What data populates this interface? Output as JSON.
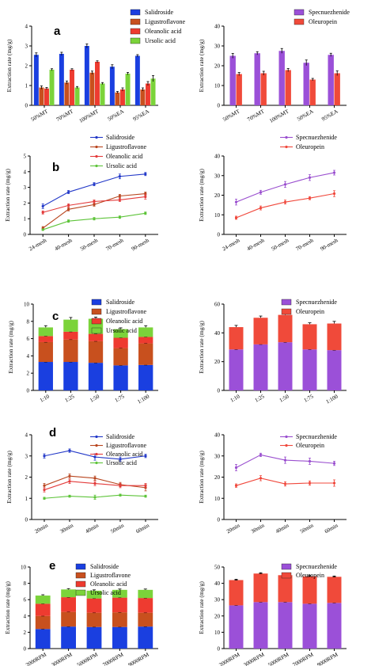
{
  "figure": {
    "panel_labels": [
      "a",
      "b",
      "c",
      "d",
      "e"
    ],
    "colors": {
      "salidroside": "#2238c8",
      "ligustroflavone": "#b8451e",
      "oleanolic": "#e33b3b",
      "ursolic": "#5ec43a",
      "specnuezhenide": "#9a4fcf",
      "oleuropein": "#f0483c",
      "bar_salidroside": "#1a3fe0",
      "bar_ligustroflavone": "#c8501e",
      "bar_oleanolic": "#ee3b30",
      "bar_ursolic": "#7bd33a",
      "bar_specnuezhenide": "#9b50d8",
      "bar_oleuropein": "#f04a3a"
    }
  },
  "chart_data": [
    {
      "id": "a-left",
      "type": "bar",
      "panel_label": "a",
      "ylabel": "Extraction rate (mg/g)",
      "ylim": [
        0,
        4
      ],
      "yticks": [
        0,
        1,
        2,
        3,
        4
      ],
      "categories": [
        "50%MT",
        "70%MT",
        "100%MT",
        "50%EA",
        "95%EA"
      ],
      "series": [
        {
          "name": "Salidroside",
          "color_key": "bar_salidroside",
          "values": [
            2.55,
            2.6,
            3.0,
            1.95,
            2.5
          ],
          "errors": [
            0.1,
            0.08,
            0.1,
            0.1,
            0.06
          ]
        },
        {
          "name": "Ligustroflavone",
          "color_key": "bar_ligustroflavone",
          "values": [
            0.9,
            1.15,
            1.65,
            0.65,
            0.8
          ],
          "errors": [
            0.08,
            0.08,
            0.08,
            0.05,
            0.08
          ]
        },
        {
          "name": "Oleanolic acid",
          "color_key": "bar_oleanolic",
          "values": [
            0.85,
            1.8,
            2.2,
            0.8,
            1.1
          ],
          "errors": [
            0.05,
            0.05,
            0.05,
            0.08,
            0.1
          ]
        },
        {
          "name": "Ursolic acid",
          "color_key": "bar_ursolic",
          "values": [
            1.8,
            0.9,
            1.1,
            1.6,
            1.35
          ],
          "errors": [
            0.05,
            0.05,
            0.05,
            0.06,
            0.15
          ]
        }
      ],
      "legend": "top-right"
    },
    {
      "id": "a-right",
      "type": "bar",
      "panel_label": "",
      "ylabel": "Extraction rate (mg/g)",
      "ylim": [
        0,
        40
      ],
      "yticks": [
        0,
        10,
        20,
        30,
        40
      ],
      "categories": [
        "50%MT",
        "70%MT",
        "100%MT",
        "50%EA",
        "95%EA"
      ],
      "series": [
        {
          "name": "Specnuezhenide",
          "color_key": "bar_specnuezhenide",
          "values": [
            25,
            26.3,
            27.5,
            21.5,
            25.5
          ],
          "errors": [
            1.2,
            0.8,
            1.2,
            1.4,
            0.8
          ]
        },
        {
          "name": "Oleuropein",
          "color_key": "bar_oleuropein",
          "values": [
            15.8,
            16.2,
            17.8,
            13,
            16.2
          ],
          "errors": [
            0.8,
            1.0,
            0.8,
            0.6,
            1.2
          ]
        }
      ],
      "legend": "top-right"
    },
    {
      "id": "b-left",
      "type": "line",
      "panel_label": "b",
      "ylabel": "Extraction rate (mg/g)",
      "ylim": [
        0,
        5
      ],
      "yticks": [
        0,
        1,
        2,
        3,
        4,
        5
      ],
      "categories": [
        "24-mesh",
        "40-mesh",
        "50-mesh",
        "70-mesh",
        "90-mesh"
      ],
      "series": [
        {
          "name": "Salidroside",
          "color_key": "salidroside",
          "values": [
            1.8,
            2.7,
            3.2,
            3.7,
            3.85
          ],
          "errors": [
            0.15,
            0.1,
            0.1,
            0.15,
            0.1
          ]
        },
        {
          "name": "Ligustroflavone",
          "color_key": "ligustroflavone",
          "values": [
            0.4,
            1.6,
            1.9,
            2.45,
            2.6
          ],
          "errors": [
            0.1,
            0.1,
            0.1,
            0.1,
            0.1
          ]
        },
        {
          "name": "Oleanolic acid",
          "color_key": "oleanolic",
          "values": [
            1.4,
            1.85,
            2.1,
            2.2,
            2.4
          ],
          "errors": [
            0.1,
            0.1,
            0.1,
            0.1,
            0.15
          ]
        },
        {
          "name": "Ursolic acid",
          "color_key": "ursolic",
          "values": [
            0.3,
            0.85,
            1.0,
            1.1,
            1.35
          ],
          "errors": [
            0.05,
            0.08,
            0.08,
            0.08,
            0.08
          ]
        }
      ],
      "legend": "top-left"
    },
    {
      "id": "b-right",
      "type": "line",
      "panel_label": "",
      "ylabel": "Extraction rate (mg/g)",
      "ylim": [
        0,
        40
      ],
      "yticks": [
        0,
        10,
        20,
        30,
        40
      ],
      "categories": [
        "24-mesh",
        "40-mesh",
        "50-mesh",
        "70-mesh",
        "90-mesh"
      ],
      "series": [
        {
          "name": "Specnuezhenide",
          "color_key": "specnuezhenide",
          "values": [
            16.5,
            21.5,
            25.5,
            29,
            31.5
          ],
          "errors": [
            1.5,
            1.0,
            1.5,
            1.5,
            1.2
          ]
        },
        {
          "name": "Oleuropein",
          "color_key": "oleuropein",
          "values": [
            8.5,
            13.5,
            16.5,
            18.5,
            20.8
          ],
          "errors": [
            0.8,
            1.0,
            1.0,
            0.8,
            1.5
          ]
        }
      ],
      "legend": "top-right"
    },
    {
      "id": "c-left",
      "type": "bar",
      "stacked": true,
      "panel_label": "c",
      "ylabel": "Extraction rate (mg/g)",
      "ylim": [
        0,
        10
      ],
      "yticks": [
        0,
        2,
        4,
        6,
        8,
        10
      ],
      "categories": [
        "1:10",
        "1:25",
        "1:50",
        "1:75",
        "1:100"
      ],
      "series": [
        {
          "name": "Salidroside",
          "color_key": "bar_salidroside",
          "values": [
            3.3,
            3.3,
            3.2,
            2.9,
            2.95
          ]
        },
        {
          "name": "Ligustroflavone",
          "color_key": "bar_ligustroflavone",
          "values": [
            2.3,
            2.6,
            2.5,
            2.0,
            2.5
          ]
        },
        {
          "name": "Oleanolic acid",
          "color_key": "bar_oleanolic",
          "values": [
            0.7,
            0.9,
            0.85,
            1.2,
            0.75
          ]
        },
        {
          "name": "Ursolic acid",
          "color_key": "bar_ursolic",
          "values": [
            1.0,
            1.4,
            1.75,
            1.0,
            1.1
          ]
        }
      ],
      "totals_error": [
        0.2,
        0.25,
        0.2,
        0.15,
        0.2
      ],
      "legend": "top-right"
    },
    {
      "id": "c-right",
      "type": "bar",
      "stacked": true,
      "panel_label": "",
      "ylabel": "Extraction rate (mg/g)",
      "ylim": [
        0,
        60
      ],
      "yticks": [
        0,
        20,
        40,
        60
      ],
      "categories": [
        "1:10",
        "1:25",
        "1:50",
        "1:75",
        "1:100"
      ],
      "series": [
        {
          "name": "Specnuezhenide",
          "color_key": "bar_specnuezhenide",
          "values": [
            28.5,
            32,
            33.5,
            28.5,
            28
          ]
        },
        {
          "name": "Oleuropein",
          "color_key": "bar_oleuropein",
          "values": [
            15.5,
            18.5,
            19,
            17.5,
            18.5
          ]
        }
      ],
      "totals_error": [
        1.2,
        1.2,
        1.0,
        1.0,
        1.5
      ],
      "legend": "top-right"
    },
    {
      "id": "d-left",
      "type": "line",
      "panel_label": "d",
      "ylabel": "Extraction rate (mg/g)",
      "ylim": [
        0,
        4
      ],
      "yticks": [
        0,
        1,
        2,
        3,
        4
      ],
      "categories": [
        "20min",
        "30min",
        "40min",
        "50min",
        "60min"
      ],
      "series": [
        {
          "name": "Salidroside",
          "color_key": "salidroside",
          "values": [
            3.0,
            3.25,
            2.95,
            2.85,
            3.0
          ],
          "errors": [
            0.1,
            0.08,
            0.15,
            0.1,
            0.08
          ]
        },
        {
          "name": "Ligustroflavone",
          "color_key": "ligustroflavone",
          "values": [
            1.6,
            2.05,
            1.95,
            1.65,
            1.5
          ],
          "errors": [
            0.1,
            0.1,
            0.1,
            0.1,
            0.15
          ]
        },
        {
          "name": "Oleanolic acid",
          "color_key": "oleanolic",
          "values": [
            1.4,
            1.8,
            1.7,
            1.6,
            1.6
          ],
          "errors": [
            0.1,
            0.1,
            0.1,
            0.1,
            0.1
          ]
        },
        {
          "name": "Ursolic acid",
          "color_key": "ursolic",
          "values": [
            1.0,
            1.1,
            1.05,
            1.15,
            1.1
          ],
          "errors": [
            0.05,
            0.05,
            0.1,
            0.05,
            0.05
          ]
        }
      ],
      "legend": "top-right"
    },
    {
      "id": "d-right",
      "type": "line",
      "panel_label": "",
      "ylabel": "Extraction rate (mg/g)",
      "ylim": [
        0,
        40
      ],
      "yticks": [
        0,
        10,
        20,
        30,
        40
      ],
      "categories": [
        "20min",
        "30min",
        "40min",
        "50min",
        "60min"
      ],
      "series": [
        {
          "name": "Specnuezhenide",
          "color_key": "specnuezhenide",
          "values": [
            24.5,
            30.5,
            28,
            27.5,
            26.5
          ],
          "errors": [
            1.5,
            0.8,
            1.5,
            1.5,
            1.0
          ]
        },
        {
          "name": "Oleuropein",
          "color_key": "oleuropein",
          "values": [
            16,
            19.5,
            16.8,
            17.2,
            17.2
          ],
          "errors": [
            0.8,
            1.2,
            1.0,
            1.0,
            1.5
          ]
        }
      ],
      "legend": "top-right"
    },
    {
      "id": "e-left",
      "type": "bar",
      "stacked": true,
      "panel_label": "e",
      "ylabel": "Extraction rate (mg/g)",
      "ylim": [
        0,
        10
      ],
      "yticks": [
        0,
        2,
        4,
        6,
        8,
        10
      ],
      "categories": [
        "2000RPM",
        "3000RPM",
        "5000RPM",
        "7000RPM",
        "9000RPM"
      ],
      "series": [
        {
          "name": "Salidroside",
          "color_key": "bar_salidroside",
          "values": [
            2.4,
            2.7,
            2.65,
            2.65,
            2.7
          ]
        },
        {
          "name": "Ligustroflavone",
          "color_key": "bar_ligustroflavone",
          "values": [
            1.6,
            1.8,
            1.75,
            1.8,
            1.7
          ]
        },
        {
          "name": "Oleanolic acid",
          "color_key": "bar_oleanolic",
          "values": [
            1.5,
            1.8,
            1.75,
            1.8,
            1.8
          ]
        },
        {
          "name": "Ursolic acid",
          "color_key": "bar_ursolic",
          "values": [
            1.0,
            0.95,
            0.95,
            0.95,
            1.0
          ]
        }
      ],
      "totals_error": [
        0.1,
        0.1,
        0.1,
        0.1,
        0.1
      ],
      "legend": "top-right"
    },
    {
      "id": "e-right",
      "type": "bar",
      "stacked": true,
      "panel_label": "",
      "ylabel": "Extraction rate (mg/g)",
      "ylim": [
        0,
        50
      ],
      "yticks": [
        0,
        10,
        20,
        30,
        40,
        50
      ],
      "categories": [
        "2000RPM",
        "3000RPM",
        "5000RPM",
        "7000RPM",
        "9000RPM"
      ],
      "series": [
        {
          "name": "Specnuezhenide",
          "color_key": "bar_specnuezhenide",
          "values": [
            26.5,
            28.5,
            28.5,
            27.5,
            28
          ]
        },
        {
          "name": "Oleuropein",
          "color_key": "bar_oleuropein",
          "values": [
            15.5,
            17.5,
            16.5,
            16.8,
            16
          ]
        },
        {
          "name": "",
          "color_key": "bar_oleuropein",
          "values": [
            0,
            0,
            0,
            0,
            0
          ]
        }
      ],
      "totals_error": [
        0.5,
        0.5,
        0.5,
        0.5,
        0.5
      ],
      "legend": "top-right"
    }
  ]
}
